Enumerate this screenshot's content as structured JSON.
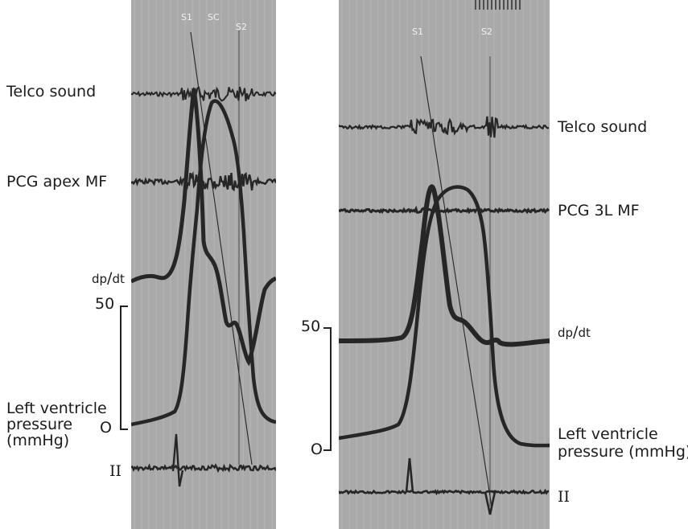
{
  "left_panel": {
    "markers": {
      "s1": "S1",
      "sc": "SC",
      "s2": "S2"
    },
    "labels": {
      "telco": "Telco sound",
      "pcg": "PCG apex MF",
      "dpdt_num": "dp",
      "dpdt_den": "dt",
      "scale_top": "50",
      "lv_line1": "Left ventricle",
      "lv_line2": "pressure",
      "lv_line3": "(mmHg)",
      "scale_zero": "O",
      "ecg": "II"
    }
  },
  "right_panel": {
    "markers": {
      "s1": "S1",
      "s2": "S2"
    },
    "labels": {
      "telco": "Telco sound",
      "pcg": "PCG 3L MF",
      "dpdt_num": "dp",
      "dpdt_den": "dt",
      "scale_top": "50",
      "lv_line1": "Left ventricle",
      "lv_line2": "pressure (mmHg)",
      "scale_zero": "O",
      "ecg": "II"
    }
  },
  "colors": {
    "trace": "#262626",
    "panel_bg": "#a9a9a9",
    "marker_text": "#f2f2f2",
    "label_text": "#1b1b1b"
  }
}
